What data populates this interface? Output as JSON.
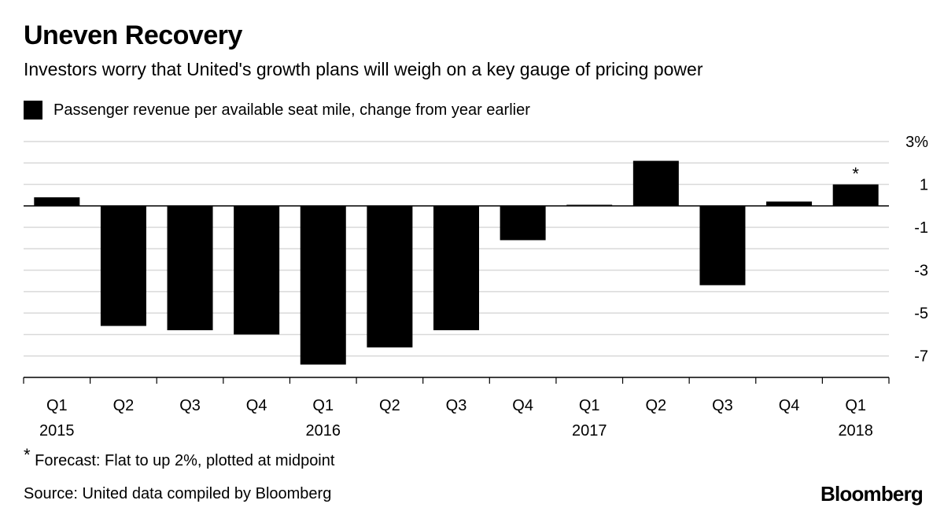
{
  "header": {
    "title": "Uneven Recovery",
    "subtitle": "Investors worry that United's growth plans will weigh on a key gauge of pricing power"
  },
  "legend": {
    "label": "Passenger revenue per available seat mile, change from year earlier",
    "color": "#000000"
  },
  "footer": {
    "footnote_mark": "*",
    "footnote_text": "Forecast: Flat to up 2%, plotted at midpoint",
    "source": "Source: United data compiled by Bloomberg",
    "brand": "Bloomberg"
  },
  "chart_data": {
    "type": "bar",
    "categories": [
      "Q1",
      "Q2",
      "Q3",
      "Q4",
      "Q1",
      "Q2",
      "Q3",
      "Q4",
      "Q1",
      "Q2",
      "Q3",
      "Q4",
      "Q1"
    ],
    "year_labels": [
      "2015",
      "",
      "",
      "",
      "2016",
      "",
      "",
      "",
      "2017",
      "",
      "",
      "",
      "2018"
    ],
    "series": [
      {
        "values": [
          0.4,
          -5.6,
          -5.8,
          -6.0,
          -7.4,
          -6.6,
          -5.8,
          -1.6,
          0.05,
          2.1,
          -3.7,
          0.2,
          1.0
        ],
        "color": "#000000"
      }
    ],
    "annotations": [
      {
        "index": 12,
        "text": "*"
      }
    ],
    "ylim": [
      -8,
      3
    ],
    "y_ticks": [
      3,
      1,
      -1,
      -3,
      -5,
      -7
    ],
    "y_tick_labels": [
      "3%",
      "1",
      "-1",
      "-3",
      "-5",
      "-7"
    ],
    "grid": true,
    "xlabel": "",
    "ylabel": ""
  }
}
